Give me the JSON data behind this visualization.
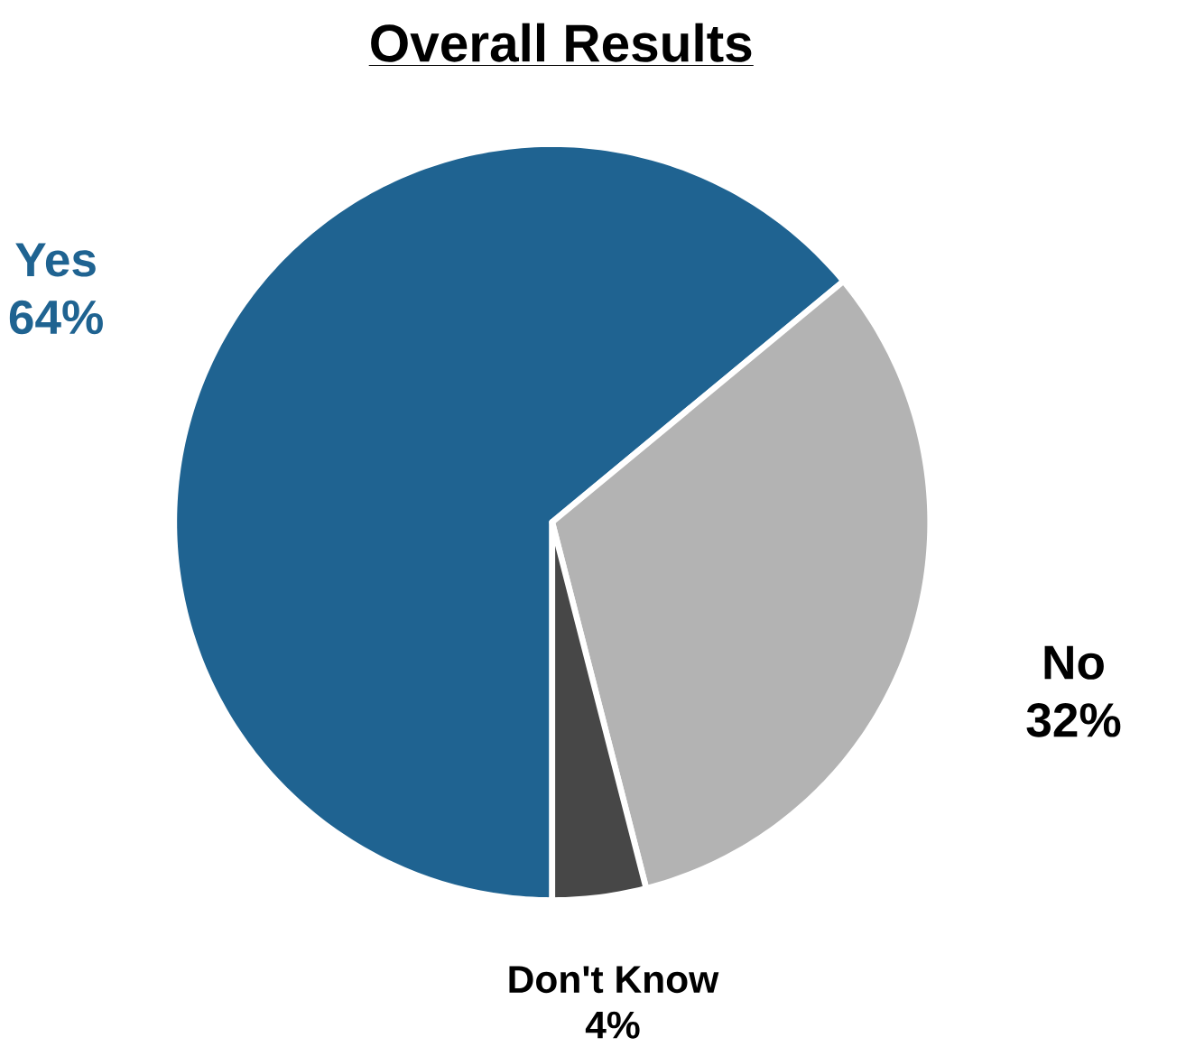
{
  "chart_data": {
    "type": "pie",
    "title": "Overall Results",
    "categories": [
      "Yes",
      "No",
      "Don't Know"
    ],
    "values": [
      64,
      32,
      4
    ],
    "value_labels": [
      "64%",
      "32%",
      "4%"
    ],
    "colors": [
      "#1f6391",
      "#b3b3b3",
      "#474747"
    ]
  }
}
